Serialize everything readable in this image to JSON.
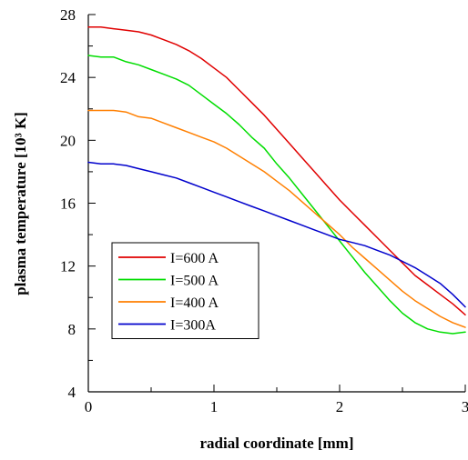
{
  "chart_data": {
    "type": "line",
    "xlabel": "radial coordinate [mm]",
    "ylabel": "plasma temperature [10³ K]",
    "xlim": [
      0,
      3
    ],
    "ylim": [
      4,
      28
    ],
    "xticks": [
      0,
      1,
      2,
      3
    ],
    "xtick_labels": [
      "0",
      "1",
      "2",
      "3"
    ],
    "yticks": [
      4,
      8,
      12,
      16,
      20,
      24,
      28
    ],
    "ytick_labels": [
      "4",
      "8",
      "12",
      "16",
      "20",
      "24",
      "28"
    ],
    "grid": false,
    "legend_position": "lower-left",
    "series": [
      {
        "name": "I=600 A",
        "color": "#e00000",
        "x": [
          0,
          0.1,
          0.2,
          0.3,
          0.4,
          0.5,
          0.6,
          0.7,
          0.8,
          0.9,
          1.0,
          1.1,
          1.2,
          1.3,
          1.4,
          1.5,
          1.6,
          1.7,
          1.8,
          1.9,
          2.0,
          2.1,
          2.2,
          2.3,
          2.4,
          2.5,
          2.6,
          2.7,
          2.8,
          2.9,
          3.0
        ],
        "y": [
          27.2,
          27.2,
          27.1,
          27.0,
          26.9,
          26.7,
          26.4,
          26.1,
          25.7,
          25.2,
          24.6,
          24.0,
          23.2,
          22.4,
          21.6,
          20.7,
          19.8,
          18.9,
          18.0,
          17.1,
          16.2,
          15.4,
          14.6,
          13.8,
          13.0,
          12.2,
          11.4,
          10.8,
          10.2,
          9.6,
          8.9
        ]
      },
      {
        "name": "I=500 A",
        "color": "#00dd00",
        "x": [
          0,
          0.1,
          0.2,
          0.3,
          0.4,
          0.5,
          0.6,
          0.7,
          0.8,
          0.9,
          1.0,
          1.1,
          1.2,
          1.3,
          1.4,
          1.5,
          1.6,
          1.7,
          1.8,
          1.9,
          2.0,
          2.1,
          2.2,
          2.3,
          2.4,
          2.5,
          2.6,
          2.7,
          2.8,
          2.9,
          3.0
        ],
        "y": [
          25.4,
          25.3,
          25.3,
          25.0,
          24.8,
          24.5,
          24.2,
          23.9,
          23.5,
          22.9,
          22.3,
          21.7,
          21.0,
          20.2,
          19.5,
          18.5,
          17.6,
          16.6,
          15.6,
          14.6,
          13.6,
          12.6,
          11.6,
          10.7,
          9.8,
          9.0,
          8.4,
          8.0,
          7.8,
          7.7,
          7.8
        ]
      },
      {
        "name": "I=400 A",
        "color": "#ff7f00",
        "x": [
          0,
          0.1,
          0.2,
          0.3,
          0.4,
          0.5,
          0.6,
          0.7,
          0.8,
          0.9,
          1.0,
          1.1,
          1.2,
          1.3,
          1.4,
          1.5,
          1.6,
          1.7,
          1.8,
          1.9,
          2.0,
          2.1,
          2.2,
          2.3,
          2.4,
          2.5,
          2.6,
          2.7,
          2.8,
          2.9,
          3.0
        ],
        "y": [
          21.9,
          21.9,
          21.9,
          21.8,
          21.5,
          21.4,
          21.1,
          20.8,
          20.5,
          20.2,
          19.9,
          19.5,
          19.0,
          18.5,
          18.0,
          17.4,
          16.8,
          16.1,
          15.4,
          14.7,
          14.0,
          13.2,
          12.5,
          11.8,
          11.1,
          10.4,
          9.8,
          9.3,
          8.8,
          8.4,
          8.1
        ]
      },
      {
        "name": "I=300A",
        "color": "#0000cc",
        "x": [
          0,
          0.1,
          0.2,
          0.3,
          0.4,
          0.5,
          0.6,
          0.7,
          0.8,
          0.9,
          1.0,
          1.1,
          1.2,
          1.3,
          1.4,
          1.5,
          1.6,
          1.7,
          1.8,
          1.9,
          2.0,
          2.1,
          2.2,
          2.3,
          2.4,
          2.5,
          2.6,
          2.7,
          2.8,
          2.9,
          3.0
        ],
        "y": [
          18.6,
          18.5,
          18.5,
          18.4,
          18.2,
          18.0,
          17.8,
          17.6,
          17.3,
          17.0,
          16.7,
          16.4,
          16.1,
          15.8,
          15.5,
          15.2,
          14.9,
          14.6,
          14.3,
          14.0,
          13.7,
          13.5,
          13.3,
          13.0,
          12.7,
          12.3,
          11.9,
          11.4,
          10.9,
          10.2,
          9.4
        ]
      }
    ]
  }
}
